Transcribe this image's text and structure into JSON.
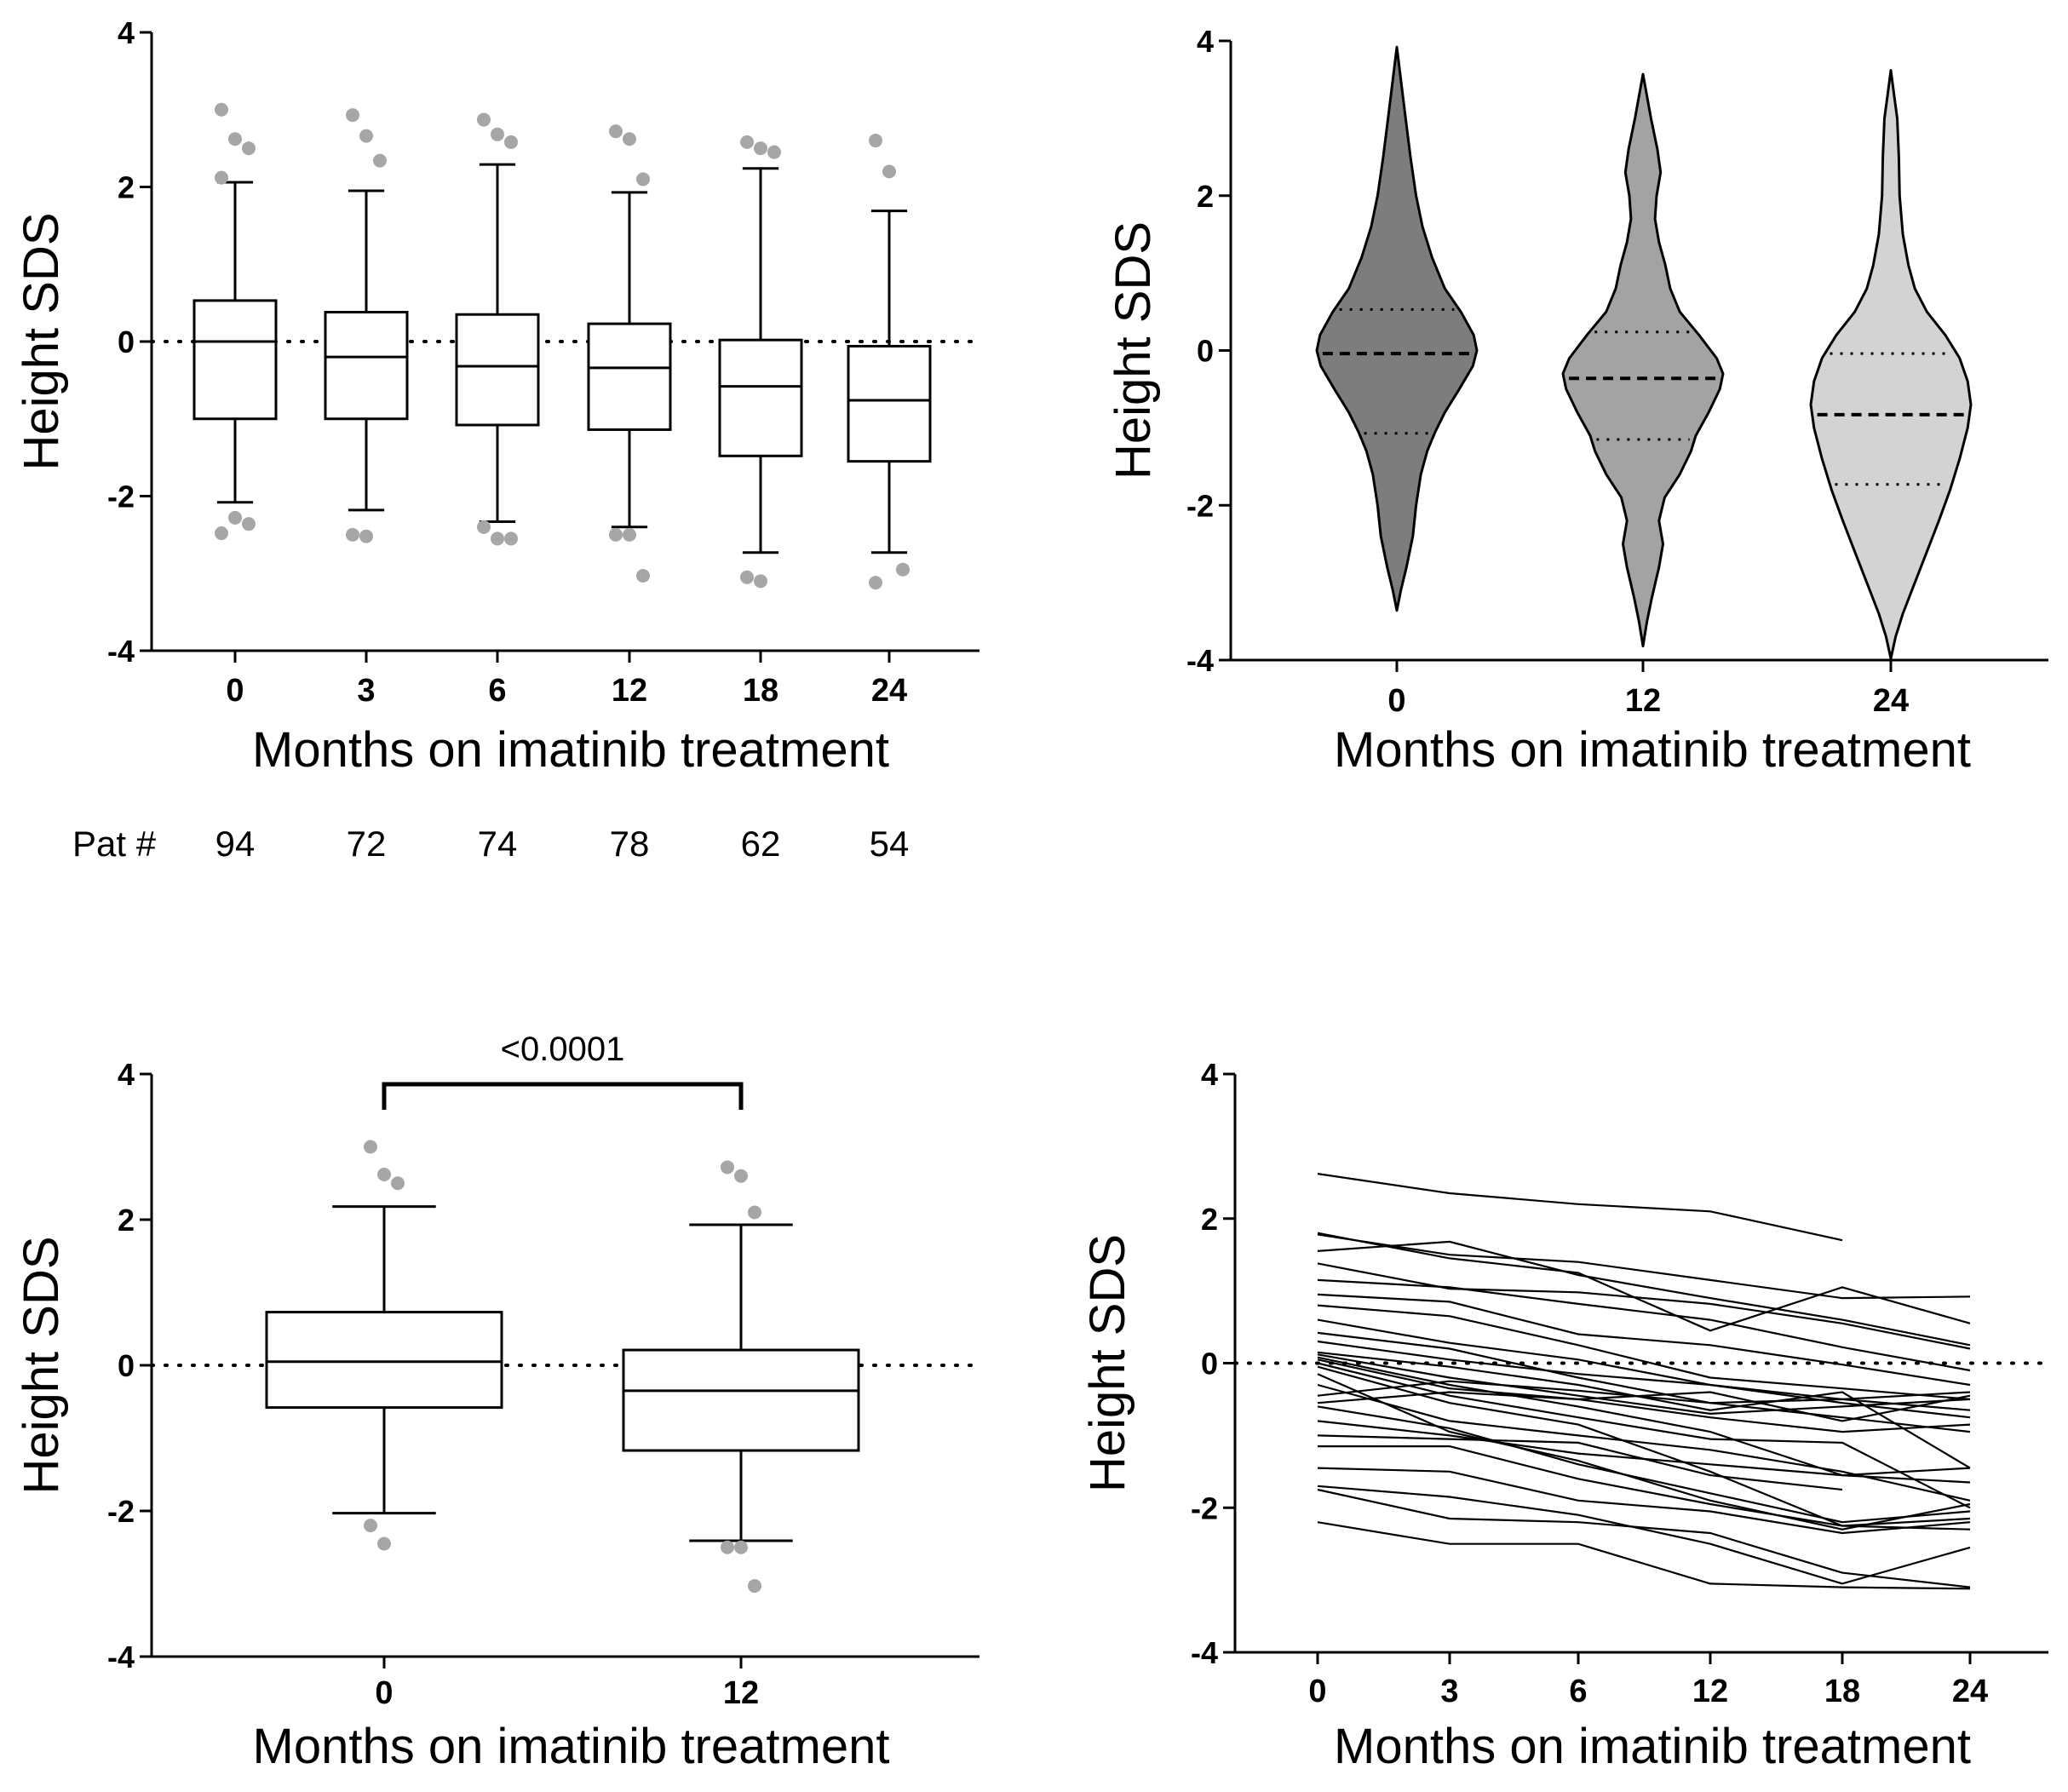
{
  "colors": {
    "axis": "#000000",
    "outlier": "#a6a6a6",
    "violin_0": "#7d7d7d",
    "violin_12": "#a3a3a3",
    "violin_24": "#d3d3d3"
  },
  "chart_data": [
    {
      "type": "box",
      "panel": "top-left",
      "xlabel": "Months on imatinib treatment",
      "ylabel": "Height SDS",
      "ylim": [
        -4,
        4
      ],
      "yticks": [
        -4,
        -2,
        0,
        2,
        4
      ],
      "reference_line": 0,
      "categories": [
        "0",
        "3",
        "6",
        "12",
        "18",
        "24"
      ],
      "boxes": [
        {
          "whisker_low": -2.08,
          "q1": -1.0,
          "median": 0.0,
          "q3": 0.53,
          "whisker_high": 2.06,
          "outliers": [
            3.0,
            2.62,
            2.5,
            2.12,
            -2.28,
            -2.36,
            -2.48
          ]
        },
        {
          "whisker_low": -2.18,
          "q1": -1.0,
          "median": -0.2,
          "q3": 0.38,
          "whisker_high": 1.95,
          "outliers": [
            2.93,
            2.66,
            2.34,
            -2.5,
            -2.52
          ]
        },
        {
          "whisker_low": -2.33,
          "q1": -1.08,
          "median": -0.32,
          "q3": 0.35,
          "whisker_high": 2.29,
          "outliers": [
            2.87,
            2.68,
            2.58,
            -2.4,
            -2.55,
            -2.55
          ]
        },
        {
          "whisker_low": -2.4,
          "q1": -1.14,
          "median": -0.34,
          "q3": 0.23,
          "whisker_high": 1.93,
          "outliers": [
            2.72,
            2.62,
            2.1,
            -2.5,
            -2.5,
            -3.03
          ]
        },
        {
          "whisker_low": -2.73,
          "q1": -1.48,
          "median": -0.58,
          "q3": 0.02,
          "whisker_high": 2.24,
          "outliers": [
            2.58,
            2.5,
            2.45,
            -3.05,
            -3.1
          ]
        },
        {
          "whisker_low": -2.73,
          "q1": -1.55,
          "median": -0.76,
          "q3": -0.06,
          "whisker_high": 1.69,
          "outliers": [
            2.6,
            2.2,
            -2.95,
            -3.12
          ]
        }
      ],
      "footer_label": "Pat #",
      "patient_counts": [
        "94",
        "72",
        "74",
        "78",
        "62",
        "54"
      ]
    },
    {
      "type": "violin",
      "panel": "top-right",
      "xlabel": "Months on imatinib treatment",
      "ylabel": "Height SDS",
      "ylim": [
        -4,
        4
      ],
      "yticks": [
        -4,
        -2,
        0,
        2,
        4
      ],
      "categories": [
        "0",
        "12",
        "24"
      ],
      "violins": [
        {
          "min": -3.36,
          "max": 3.92,
          "median": -0.04,
          "q1": -1.07,
          "q3": 0.53,
          "profile": [
            [
              -3.36,
              0.0
            ],
            [
              -3.1,
              0.05
            ],
            [
              -2.8,
              0.12
            ],
            [
              -2.4,
              0.2
            ],
            [
              -2.0,
              0.24
            ],
            [
              -1.6,
              0.3
            ],
            [
              -1.3,
              0.38
            ],
            [
              -1.05,
              0.48
            ],
            [
              -0.8,
              0.6
            ],
            [
              -0.5,
              0.78
            ],
            [
              -0.2,
              0.95
            ],
            [
              0.0,
              1.0
            ],
            [
              0.2,
              0.96
            ],
            [
              0.5,
              0.8
            ],
            [
              0.8,
              0.6
            ],
            [
              1.2,
              0.44
            ],
            [
              1.6,
              0.32
            ],
            [
              2.0,
              0.24
            ],
            [
              2.5,
              0.17
            ],
            [
              3.0,
              0.11
            ],
            [
              3.5,
              0.05
            ],
            [
              3.92,
              0.0
            ]
          ]
        },
        {
          "min": -3.82,
          "max": 3.57,
          "median": -0.36,
          "q1": -1.15,
          "q3": 0.24,
          "profile": [
            [
              -3.82,
              0.0
            ],
            [
              -3.5,
              0.05
            ],
            [
              -3.2,
              0.11
            ],
            [
              -2.8,
              0.2
            ],
            [
              -2.5,
              0.25
            ],
            [
              -2.2,
              0.2
            ],
            [
              -1.9,
              0.27
            ],
            [
              -1.6,
              0.46
            ],
            [
              -1.3,
              0.6
            ],
            [
              -1.1,
              0.66
            ],
            [
              -0.8,
              0.82
            ],
            [
              -0.5,
              0.96
            ],
            [
              -0.3,
              1.0
            ],
            [
              -0.1,
              0.92
            ],
            [
              0.2,
              0.7
            ],
            [
              0.5,
              0.46
            ],
            [
              0.8,
              0.34
            ],
            [
              1.1,
              0.28
            ],
            [
              1.4,
              0.2
            ],
            [
              1.7,
              0.15
            ],
            [
              2.0,
              0.17
            ],
            [
              2.3,
              0.22
            ],
            [
              2.6,
              0.18
            ],
            [
              3.0,
              0.1
            ],
            [
              3.57,
              0.0
            ]
          ]
        },
        {
          "min": -3.98,
          "max": 3.62,
          "median": -0.83,
          "q1": -1.73,
          "q3": -0.04,
          "profile": [
            [
              -3.98,
              0.0
            ],
            [
              -3.7,
              0.06
            ],
            [
              -3.4,
              0.15
            ],
            [
              -3.0,
              0.3
            ],
            [
              -2.6,
              0.45
            ],
            [
              -2.2,
              0.6
            ],
            [
              -1.8,
              0.74
            ],
            [
              -1.4,
              0.86
            ],
            [
              -1.0,
              0.96
            ],
            [
              -0.7,
              1.0
            ],
            [
              -0.4,
              0.96
            ],
            [
              -0.1,
              0.86
            ],
            [
              0.2,
              0.68
            ],
            [
              0.5,
              0.45
            ],
            [
              0.8,
              0.3
            ],
            [
              1.1,
              0.22
            ],
            [
              1.5,
              0.15
            ],
            [
              2.0,
              0.11
            ],
            [
              2.5,
              0.1
            ],
            [
              3.0,
              0.08
            ],
            [
              3.3,
              0.04
            ],
            [
              3.62,
              0.0
            ]
          ]
        }
      ]
    },
    {
      "type": "box",
      "panel": "bottom-left",
      "xlabel": "Months on imatinib treatment",
      "ylabel": "Height SDS",
      "ylim": [
        -4,
        4
      ],
      "yticks": [
        -4,
        -2,
        0,
        2,
        4
      ],
      "reference_line": 0,
      "categories": [
        "0",
        "12"
      ],
      "boxes": [
        {
          "whisker_low": -2.03,
          "q1": -0.58,
          "median": 0.05,
          "q3": 0.73,
          "whisker_high": 2.18,
          "outliers": [
            3.0,
            2.62,
            2.5,
            -2.2,
            -2.45
          ]
        },
        {
          "whisker_low": -2.41,
          "q1": -1.17,
          "median": -0.35,
          "q3": 0.21,
          "whisker_high": 1.93,
          "outliers": [
            2.72,
            2.6,
            2.1,
            -2.5,
            -2.5,
            -3.03
          ]
        }
      ],
      "significance": {
        "label": "<0.0001",
        "from": "0",
        "to": "12"
      }
    },
    {
      "type": "line",
      "panel": "bottom-right",
      "xlabel": "Months on imatinib treatment",
      "ylabel": "Height SDS",
      "ylim": [
        -4,
        4
      ],
      "yticks": [
        -4,
        -2,
        0,
        2,
        4
      ],
      "reference_line": 0,
      "categories": [
        "0",
        "3",
        "6",
        "12",
        "18",
        "24"
      ],
      "series": [
        {
          "values": [
            2.62,
            2.35,
            2.2,
            2.1,
            1.7,
            null
          ]
        },
        {
          "values": [
            1.8,
            1.45,
            1.25,
            0.45,
            1.05,
            0.55
          ]
        },
        {
          "values": [
            1.78,
            1.5,
            1.4,
            1.15,
            0.9,
            0.92
          ]
        },
        {
          "values": [
            1.55,
            1.68,
            1.22,
            0.9,
            0.6,
            0.25
          ]
        },
        {
          "values": [
            1.38,
            1.03,
            0.98,
            0.82,
            0.55,
            0.2
          ]
        },
        {
          "values": [
            1.15,
            1.05,
            0.82,
            0.6,
            0.22,
            -0.1
          ]
        },
        {
          "values": [
            0.95,
            0.85,
            0.4,
            0.25,
            -0.02,
            -0.3
          ]
        },
        {
          "values": [
            0.8,
            0.65,
            0.25,
            -0.2,
            -0.35,
            -0.5
          ]
        },
        {
          "values": [
            0.6,
            0.28,
            0.05,
            -0.3,
            -0.55,
            -0.75
          ]
        },
        {
          "values": [
            0.42,
            0.2,
            -0.2,
            -0.55,
            -0.75,
            -0.95
          ]
        },
        {
          "values": [
            0.15,
            -0.05,
            -0.3,
            -0.65,
            -0.4,
            -1.45
          ]
        },
        {
          "values": [
            0.12,
            -0.2,
            -0.45,
            -0.7,
            -0.6,
            -0.5
          ]
        },
        {
          "values": [
            0.08,
            -0.3,
            -0.6,
            -0.95,
            -1.55,
            -1.65
          ]
        },
        {
          "values": [
            0.05,
            -0.35,
            -0.5,
            -0.4,
            -0.8,
            -0.45
          ]
        },
        {
          "values": [
            0.0,
            -0.45,
            -0.75,
            -1.05,
            -1.1,
            -2.0
          ]
        },
        {
          "values": [
            -0.05,
            -0.55,
            -0.85,
            -1.5,
            -2.25,
            -2.15
          ]
        },
        {
          "values": [
            -0.15,
            -0.95,
            -1.35,
            -1.9,
            -2.3,
            -1.95
          ]
        },
        {
          "values": [
            -0.3,
            -0.8,
            -1.0,
            -1.2,
            -1.5,
            -1.9
          ]
        },
        {
          "values": [
            -0.45,
            -0.25,
            -0.38,
            -0.55,
            -0.5,
            -0.65
          ]
        },
        {
          "values": [
            -0.55,
            -0.4,
            -0.5,
            -0.75,
            -0.95,
            -0.85
          ]
        },
        {
          "values": [
            -0.6,
            -0.9,
            -1.4,
            -1.8,
            -2.2,
            -2.05
          ]
        },
        {
          "values": [
            -1.0,
            -1.05,
            -1.1,
            -1.55,
            -1.75,
            null
          ]
        },
        {
          "values": [
            -1.15,
            -1.15,
            -1.6,
            -1.95,
            -2.25,
            -2.3
          ]
        },
        {
          "values": [
            -1.45,
            -1.5,
            -1.9,
            -2.05,
            -2.35,
            -2.2
          ]
        },
        {
          "values": [
            -1.7,
            -1.85,
            -2.1,
            -2.5,
            -3.05,
            -2.55
          ]
        },
        {
          "values": [
            -1.75,
            -2.15,
            -2.2,
            -2.35,
            -2.9,
            -3.1
          ]
        },
        {
          "values": [
            -2.2,
            -2.5,
            -2.5,
            -3.05,
            -3.1,
            -3.12
          ]
        },
        {
          "values": [
            0.3,
            0.05,
            -0.15,
            -0.3,
            -0.5,
            -0.4
          ]
        },
        {
          "values": [
            -0.8,
            -1.0,
            -1.25,
            -1.4,
            -1.55,
            -1.45
          ]
        }
      ]
    }
  ]
}
